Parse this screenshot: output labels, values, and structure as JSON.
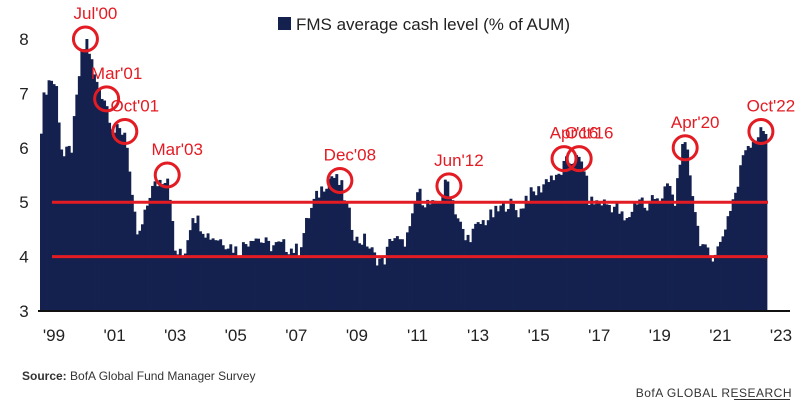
{
  "chart_data": {
    "type": "bar",
    "title": "FMS average cash level (% of AUM)",
    "legend": {
      "label": "FMS average cash level (% of AUM)",
      "position": "top"
    },
    "ylim": [
      3,
      8
    ],
    "yticks": [
      3,
      4,
      5,
      6,
      7,
      8
    ],
    "xlim": [
      1999.0,
      2023.1
    ],
    "xticks": [
      {
        "value": 1999,
        "label": "'99"
      },
      {
        "value": 2001,
        "label": "'01"
      },
      {
        "value": 2003,
        "label": "'03"
      },
      {
        "value": 2005,
        "label": "'05"
      },
      {
        "value": 2007,
        "label": "'07"
      },
      {
        "value": 2009,
        "label": "'09"
      },
      {
        "value": 2011,
        "label": "'11"
      },
      {
        "value": 2013,
        "label": "'13"
      },
      {
        "value": 2015,
        "label": "'15"
      },
      {
        "value": 2017,
        "label": "'17"
      },
      {
        "value": 2019,
        "label": "'19"
      },
      {
        "value": 2021,
        "label": "'21"
      },
      {
        "value": 2023,
        "label": "'23"
      }
    ],
    "series_color": "#14214f",
    "threshold_color": "#e31b23",
    "reference_lines": [
      4.0,
      5.0
    ],
    "keypoints": [
      [
        1999.0,
        6.4
      ],
      [
        1999.1,
        7.0
      ],
      [
        1999.3,
        7.3
      ],
      [
        1999.5,
        7.1
      ],
      [
        1999.7,
        5.8
      ],
      [
        2000.0,
        6.0
      ],
      [
        2000.3,
        7.6
      ],
      [
        2000.5,
        8.0
      ],
      [
        2000.8,
        7.2
      ],
      [
        2001.1,
        6.9
      ],
      [
        2001.4,
        6.3
      ],
      [
        2001.8,
        6.3
      ],
      [
        2002.0,
        5.0
      ],
      [
        2002.2,
        4.3
      ],
      [
        2002.4,
        4.7
      ],
      [
        2002.6,
        5.2
      ],
      [
        2002.9,
        5.4
      ],
      [
        2003.2,
        5.5
      ],
      [
        2003.4,
        4.1
      ],
      [
        2003.7,
        4.0
      ],
      [
        2004.0,
        4.8
      ],
      [
        2004.5,
        4.4
      ],
      [
        2005.0,
        4.3
      ],
      [
        2005.5,
        4.1
      ],
      [
        2006.0,
        4.4
      ],
      [
        2006.5,
        4.2
      ],
      [
        2007.0,
        4.2
      ],
      [
        2007.5,
        4.1
      ],
      [
        2007.8,
        4.7
      ],
      [
        2008.0,
        5.0
      ],
      [
        2008.3,
        5.3
      ],
      [
        2008.6,
        5.5
      ],
      [
        2008.9,
        5.3
      ],
      [
        2009.1,
        4.9
      ],
      [
        2009.4,
        4.3
      ],
      [
        2009.7,
        4.3
      ],
      [
        2010.0,
        4.0
      ],
      [
        2010.3,
        3.9
      ],
      [
        2010.6,
        4.4
      ],
      [
        2010.9,
        4.2
      ],
      [
        2011.2,
        4.5
      ],
      [
        2011.4,
        5.2
      ],
      [
        2011.7,
        5.0
      ],
      [
        2012.0,
        4.9
      ],
      [
        2012.2,
        5.1
      ],
      [
        2012.4,
        5.4
      ],
      [
        2012.7,
        4.8
      ],
      [
        2013.0,
        4.3
      ],
      [
        2013.5,
        4.6
      ],
      [
        2014.0,
        4.8
      ],
      [
        2014.4,
        5.0
      ],
      [
        2014.8,
        4.8
      ],
      [
        2015.0,
        5.1
      ],
      [
        2015.4,
        5.2
      ],
      [
        2015.8,
        5.5
      ],
      [
        2016.0,
        5.4
      ],
      [
        2016.3,
        5.7
      ],
      [
        2016.6,
        5.8
      ],
      [
        2016.9,
        5.7
      ],
      [
        2017.1,
        5.0
      ],
      [
        2017.5,
        5.0
      ],
      [
        2018.0,
        4.9
      ],
      [
        2018.3,
        4.6
      ],
      [
        2018.6,
        5.0
      ],
      [
        2018.8,
        5.1
      ],
      [
        2019.0,
        4.8
      ],
      [
        2019.2,
        5.2
      ],
      [
        2019.5,
        5.0
      ],
      [
        2019.7,
        5.4
      ],
      [
        2019.9,
        4.9
      ],
      [
        2020.1,
        5.9
      ],
      [
        2020.3,
        6.0
      ],
      [
        2020.5,
        5.2
      ],
      [
        2020.7,
        4.4
      ],
      [
        2020.9,
        4.1
      ],
      [
        2021.1,
        4.0
      ],
      [
        2021.4,
        4.2
      ],
      [
        2021.6,
        4.6
      ],
      [
        2021.8,
        5.0
      ],
      [
        2022.0,
        5.3
      ],
      [
        2022.2,
        6.0
      ],
      [
        2022.4,
        6.1
      ],
      [
        2022.6,
        6.2
      ],
      [
        2022.8,
        6.3
      ],
      [
        2023.0,
        6.3
      ]
    ],
    "annotations": [
      {
        "label": "Jul'00",
        "x": 2000.5,
        "y": 8.0
      },
      {
        "label": "Mar'01",
        "x": 2001.2,
        "y": 6.9
      },
      {
        "label": "Oct'01",
        "x": 2001.8,
        "y": 6.3
      },
      {
        "label": "Mar'03",
        "x": 2003.2,
        "y": 5.5
      },
      {
        "label": "Dec'08",
        "x": 2008.9,
        "y": 5.4
      },
      {
        "label": "Jun'12",
        "x": 2012.5,
        "y": 5.3
      },
      {
        "label": "Apr'16",
        "x": 2016.3,
        "y": 5.8
      },
      {
        "label": "Oct'16",
        "x": 2016.8,
        "y": 5.8
      },
      {
        "label": "Apr'20",
        "x": 2020.3,
        "y": 6.0
      },
      {
        "label": "Oct'22",
        "x": 2022.8,
        "y": 6.3
      }
    ]
  },
  "source": {
    "label": "Source:",
    "text": "BofA Global Fund Manager Survey"
  },
  "branding": "BofA GLOBAL RESEARCH"
}
